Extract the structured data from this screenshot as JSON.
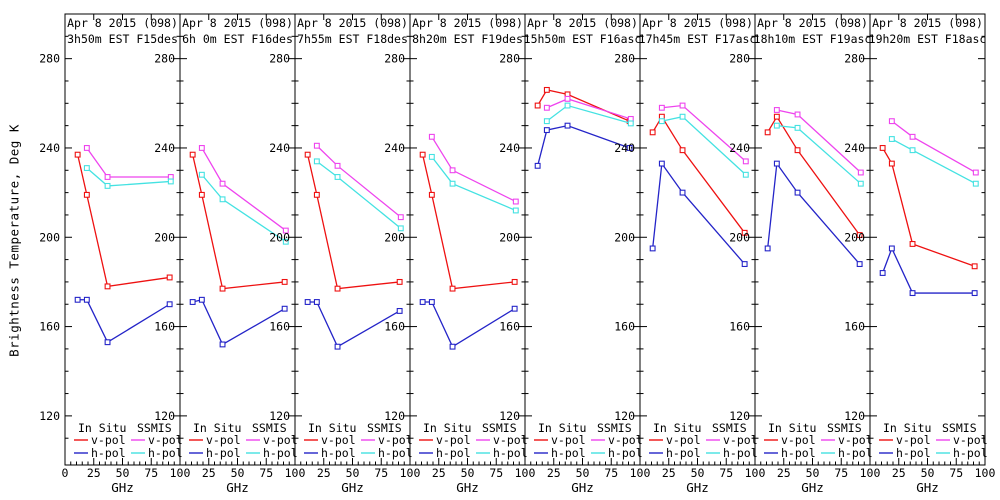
{
  "figure": {
    "ylabel": "Brightness Temperature, Deg K",
    "xlabel": "GHz",
    "colors": {
      "in_situ_v": "#ee1111",
      "in_situ_h": "#2424c8",
      "ssmis_v": "#ee44ee",
      "ssmis_h": "#44e2e2"
    },
    "legend": {
      "col1_header": "In Situ",
      "col2_header": "SSMIS",
      "vpol_label": "v-pol",
      "hpol_label": "h-pol"
    }
  },
  "chart_data": [
    {
      "type": "line",
      "title1": "Apr 8 2015 (098)",
      "title2": "3h50m EST F15des",
      "xlim": [
        0,
        100
      ],
      "ylim": [
        98,
        300
      ],
      "xticks": [
        0,
        25,
        50,
        75,
        100
      ],
      "yticks": [
        120,
        160,
        200,
        240,
        280
      ],
      "series": [
        {
          "name": "In Situ v-pol",
          "color_key": "in_situ_v",
          "x": [
            11,
            19,
            37,
            91
          ],
          "y": [
            237,
            219,
            178,
            182
          ]
        },
        {
          "name": "In Situ h-pol",
          "color_key": "in_situ_h",
          "x": [
            11,
            19,
            37,
            91
          ],
          "y": [
            172,
            172,
            153,
            170
          ]
        },
        {
          "name": "SSMIS v-pol",
          "color_key": "ssmis_v",
          "x": [
            19,
            37,
            92
          ],
          "y": [
            240,
            227,
            227
          ]
        },
        {
          "name": "SSMIS h-pol",
          "color_key": "ssmis_h",
          "x": [
            19,
            37,
            92
          ],
          "y": [
            231,
            223,
            225
          ]
        }
      ]
    },
    {
      "type": "line",
      "title1": "Apr 8 2015 (098)",
      "title2": "6h 0m EST F16des",
      "xlim": [
        0,
        100
      ],
      "ylim": [
        98,
        300
      ],
      "xticks": [
        0,
        25,
        50,
        75,
        100
      ],
      "yticks": [
        120,
        160,
        200,
        240,
        280
      ],
      "series": [
        {
          "name": "In Situ v-pol",
          "color_key": "in_situ_v",
          "x": [
            11,
            19,
            37,
            91
          ],
          "y": [
            237,
            219,
            177,
            180
          ]
        },
        {
          "name": "In Situ h-pol",
          "color_key": "in_situ_h",
          "x": [
            11,
            19,
            37,
            91
          ],
          "y": [
            171,
            172,
            152,
            168
          ]
        },
        {
          "name": "SSMIS v-pol",
          "color_key": "ssmis_v",
          "x": [
            19,
            37,
            92
          ],
          "y": [
            240,
            224,
            203
          ]
        },
        {
          "name": "SSMIS h-pol",
          "color_key": "ssmis_h",
          "x": [
            19,
            37,
            92
          ],
          "y": [
            228,
            217,
            198
          ]
        }
      ]
    },
    {
      "type": "line",
      "title1": "Apr 8 2015 (098)",
      "title2": "7h55m EST F18des",
      "xlim": [
        0,
        100
      ],
      "ylim": [
        98,
        300
      ],
      "xticks": [
        0,
        25,
        50,
        75,
        100
      ],
      "yticks": [
        120,
        160,
        200,
        240,
        280
      ],
      "series": [
        {
          "name": "In Situ v-pol",
          "color_key": "in_situ_v",
          "x": [
            11,
            19,
            37,
            91
          ],
          "y": [
            237,
            219,
            177,
            180
          ]
        },
        {
          "name": "In Situ h-pol",
          "color_key": "in_situ_h",
          "x": [
            11,
            19,
            37,
            91
          ],
          "y": [
            171,
            171,
            151,
            167
          ]
        },
        {
          "name": "SSMIS v-pol",
          "color_key": "ssmis_v",
          "x": [
            19,
            37,
            92
          ],
          "y": [
            241,
            232,
            209
          ]
        },
        {
          "name": "SSMIS h-pol",
          "color_key": "ssmis_h",
          "x": [
            19,
            37,
            92
          ],
          "y": [
            234,
            227,
            204
          ]
        }
      ]
    },
    {
      "type": "line",
      "title1": "Apr 8 2015 (098)",
      "title2": "8h20m EST F19des",
      "xlim": [
        0,
        100
      ],
      "ylim": [
        98,
        300
      ],
      "xticks": [
        0,
        25,
        50,
        75,
        100
      ],
      "yticks": [
        120,
        160,
        200,
        240,
        280
      ],
      "series": [
        {
          "name": "In Situ v-pol",
          "color_key": "in_situ_v",
          "x": [
            11,
            19,
            37,
            91
          ],
          "y": [
            237,
            219,
            177,
            180
          ]
        },
        {
          "name": "In Situ h-pol",
          "color_key": "in_situ_h",
          "x": [
            11,
            19,
            37,
            91
          ],
          "y": [
            171,
            171,
            151,
            168
          ]
        },
        {
          "name": "SSMIS v-pol",
          "color_key": "ssmis_v",
          "x": [
            19,
            37,
            92
          ],
          "y": [
            245,
            230,
            216
          ]
        },
        {
          "name": "SSMIS h-pol",
          "color_key": "ssmis_h",
          "x": [
            19,
            37,
            92
          ],
          "y": [
            236,
            224,
            212
          ]
        }
      ]
    },
    {
      "type": "line",
      "title1": "Apr 8 2015 (098)",
      "title2": "15h50m EST F16asc",
      "xlim": [
        0,
        100
      ],
      "ylim": [
        98,
        300
      ],
      "xticks": [
        0,
        25,
        50,
        75,
        100
      ],
      "yticks": [
        120,
        160,
        200,
        240,
        280
      ],
      "series": [
        {
          "name": "In Situ v-pol",
          "color_key": "in_situ_v",
          "x": [
            11,
            19,
            37,
            91
          ],
          "y": [
            259,
            266,
            264,
            252
          ]
        },
        {
          "name": "In Situ h-pol",
          "color_key": "in_situ_h",
          "x": [
            11,
            19,
            37,
            91
          ],
          "y": [
            232,
            248,
            250,
            240
          ]
        },
        {
          "name": "SSMIS v-pol",
          "color_key": "ssmis_v",
          "x": [
            19,
            37,
            92
          ],
          "y": [
            258,
            262,
            253
          ]
        },
        {
          "name": "SSMIS h-pol",
          "color_key": "ssmis_h",
          "x": [
            19,
            37,
            92
          ],
          "y": [
            252,
            259,
            251
          ]
        }
      ]
    },
    {
      "type": "line",
      "title1": "Apr 8 2015 (098)",
      "title2": "17h45m EST F17asc",
      "xlim": [
        0,
        100
      ],
      "ylim": [
        98,
        300
      ],
      "xticks": [
        0,
        25,
        50,
        75,
        100
      ],
      "yticks": [
        120,
        160,
        200,
        240,
        280
      ],
      "series": [
        {
          "name": "In Situ v-pol",
          "color_key": "in_situ_v",
          "x": [
            11,
            19,
            37,
            91
          ],
          "y": [
            247,
            254,
            239,
            202
          ]
        },
        {
          "name": "In Situ h-pol",
          "color_key": "in_situ_h",
          "x": [
            11,
            19,
            37,
            91
          ],
          "y": [
            195,
            233,
            220,
            188
          ]
        },
        {
          "name": "SSMIS v-pol",
          "color_key": "ssmis_v",
          "x": [
            19,
            37,
            92
          ],
          "y": [
            258,
            259,
            234
          ]
        },
        {
          "name": "SSMIS h-pol",
          "color_key": "ssmis_h",
          "x": [
            19,
            37,
            92
          ],
          "y": [
            252,
            254,
            228
          ]
        }
      ]
    },
    {
      "type": "line",
      "title1": "Apr 8 2015 (098)",
      "title2": "18h10m EST F19asc",
      "xlim": [
        0,
        100
      ],
      "ylim": [
        98,
        300
      ],
      "xticks": [
        0,
        25,
        50,
        75,
        100
      ],
      "yticks": [
        120,
        160,
        200,
        240,
        280
      ],
      "series": [
        {
          "name": "In Situ v-pol",
          "color_key": "in_situ_v",
          "x": [
            11,
            19,
            37,
            91
          ],
          "y": [
            247,
            254,
            239,
            201
          ]
        },
        {
          "name": "In Situ h-pol",
          "color_key": "in_situ_h",
          "x": [
            11,
            19,
            37,
            91
          ],
          "y": [
            195,
            233,
            220,
            188
          ]
        },
        {
          "name": "SSMIS v-pol",
          "color_key": "ssmis_v",
          "x": [
            19,
            37,
            92
          ],
          "y": [
            257,
            255,
            229
          ]
        },
        {
          "name": "SSMIS h-pol",
          "color_key": "ssmis_h",
          "x": [
            19,
            37,
            92
          ],
          "y": [
            250,
            249,
            224
          ]
        }
      ]
    },
    {
      "type": "line",
      "title1": "Apr 8 2015 (098)",
      "title2": "19h20m EST F18asc",
      "xlim": [
        0,
        100
      ],
      "ylim": [
        98,
        300
      ],
      "xticks": [
        0,
        25,
        50,
        75,
        100
      ],
      "yticks": [
        120,
        160,
        200,
        240,
        280
      ],
      "series": [
        {
          "name": "In Situ v-pol",
          "color_key": "in_situ_v",
          "x": [
            11,
            19,
            37,
            91
          ],
          "y": [
            240,
            233,
            197,
            187
          ]
        },
        {
          "name": "In Situ h-pol",
          "color_key": "in_situ_h",
          "x": [
            11,
            19,
            37,
            91
          ],
          "y": [
            184,
            195,
            175,
            175
          ]
        },
        {
          "name": "SSMIS v-pol",
          "color_key": "ssmis_v",
          "x": [
            19,
            37,
            92
          ],
          "y": [
            252,
            245,
            229
          ]
        },
        {
          "name": "SSMIS h-pol",
          "color_key": "ssmis_h",
          "x": [
            19,
            37,
            92
          ],
          "y": [
            244,
            239,
            224
          ]
        }
      ]
    }
  ]
}
